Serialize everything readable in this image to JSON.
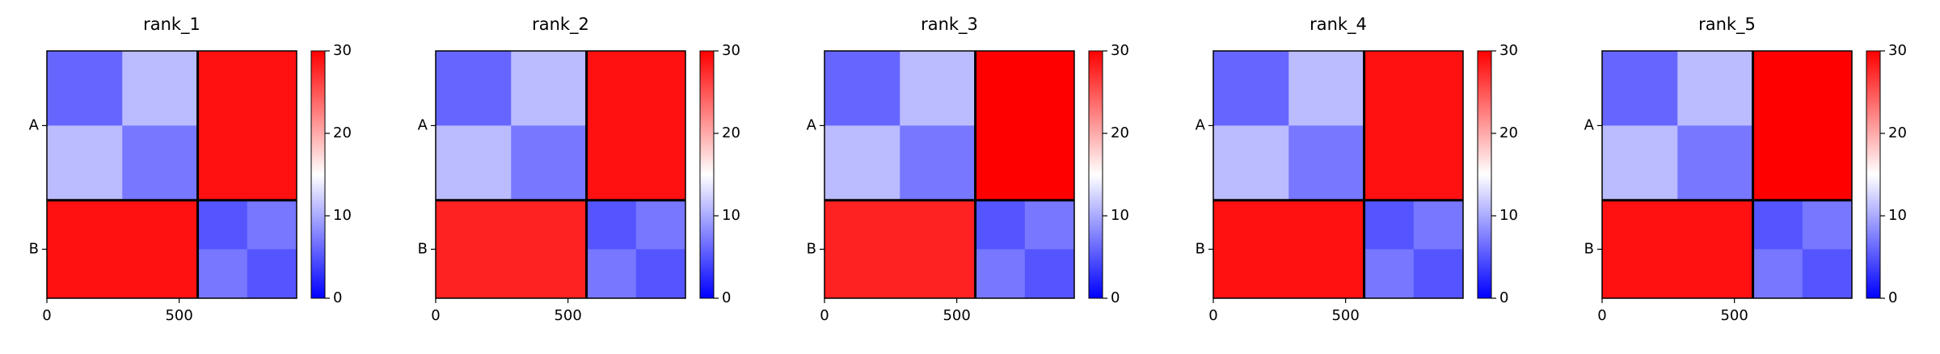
{
  "chart_data": [
    {
      "type": "heatmap",
      "title": "rank_1",
      "cmap": "bwr",
      "x_edges": [
        0,
        285,
        570,
        757,
        944
      ],
      "y_edges": [
        0,
        285,
        570,
        757,
        944
      ],
      "values": [
        [
          6,
          11,
          29,
          29
        ],
        [
          11,
          7,
          29,
          29
        ],
        [
          29,
          29,
          5,
          7
        ],
        [
          29,
          29,
          7,
          5
        ]
      ],
      "xlim": [
        0,
        944
      ],
      "ylim": [
        944,
        0
      ],
      "xticks": [
        0,
        500
      ],
      "yticks": [
        {
          "value": 285,
          "label": "A"
        },
        {
          "value": 757,
          "label": "B"
        }
      ],
      "chain_breaks": [
        570
      ],
      "clim": [
        0,
        30
      ],
      "cticks": [
        0,
        10,
        20,
        30
      ]
    },
    {
      "type": "heatmap",
      "title": "rank_2",
      "cmap": "bwr",
      "x_edges": [
        0,
        285,
        570,
        757,
        944
      ],
      "y_edges": [
        0,
        285,
        570,
        757,
        944
      ],
      "values": [
        [
          6,
          11,
          29,
          29
        ],
        [
          11,
          7,
          29,
          29
        ],
        [
          28,
          28,
          5,
          7
        ],
        [
          28,
          28,
          7,
          5
        ]
      ],
      "xlim": [
        0,
        944
      ],
      "ylim": [
        944,
        0
      ],
      "xticks": [
        0,
        500
      ],
      "yticks": [
        {
          "value": 285,
          "label": "A"
        },
        {
          "value": 757,
          "label": "B"
        }
      ],
      "chain_breaks": [
        570
      ],
      "clim": [
        0,
        30
      ],
      "cticks": [
        0,
        10,
        20,
        30
      ]
    },
    {
      "type": "heatmap",
      "title": "rank_3",
      "cmap": "bwr",
      "x_edges": [
        0,
        285,
        570,
        757,
        944
      ],
      "y_edges": [
        0,
        285,
        570,
        757,
        944
      ],
      "values": [
        [
          6,
          11,
          30,
          30
        ],
        [
          11,
          7,
          30,
          30
        ],
        [
          28,
          28,
          5,
          7
        ],
        [
          28,
          28,
          7,
          5
        ]
      ],
      "xlim": [
        0,
        944
      ],
      "ylim": [
        944,
        0
      ],
      "xticks": [
        0,
        500
      ],
      "yticks": [
        {
          "value": 285,
          "label": "A"
        },
        {
          "value": 757,
          "label": "B"
        }
      ],
      "chain_breaks": [
        570
      ],
      "clim": [
        0,
        30
      ],
      "cticks": [
        0,
        10,
        20,
        30
      ]
    },
    {
      "type": "heatmap",
      "title": "rank_4",
      "cmap": "bwr",
      "x_edges": [
        0,
        285,
        570,
        757,
        944
      ],
      "y_edges": [
        0,
        285,
        570,
        757,
        944
      ],
      "values": [
        [
          6,
          11,
          29,
          29
        ],
        [
          11,
          7,
          29,
          29
        ],
        [
          29,
          29,
          5,
          7
        ],
        [
          29,
          29,
          7,
          5
        ]
      ],
      "xlim": [
        0,
        944
      ],
      "ylim": [
        944,
        0
      ],
      "xticks": [
        0,
        500
      ],
      "yticks": [
        {
          "value": 285,
          "label": "A"
        },
        {
          "value": 757,
          "label": "B"
        }
      ],
      "chain_breaks": [
        570
      ],
      "clim": [
        0,
        30
      ],
      "cticks": [
        0,
        10,
        20,
        30
      ]
    },
    {
      "type": "heatmap",
      "title": "rank_5",
      "cmap": "bwr",
      "x_edges": [
        0,
        285,
        570,
        757,
        944
      ],
      "y_edges": [
        0,
        285,
        570,
        757,
        944
      ],
      "values": [
        [
          6,
          11,
          30,
          30
        ],
        [
          11,
          7,
          30,
          30
        ],
        [
          29,
          29,
          5,
          7
        ],
        [
          29,
          29,
          7,
          5
        ]
      ],
      "xlim": [
        0,
        944
      ],
      "ylim": [
        944,
        0
      ],
      "xticks": [
        0,
        500
      ],
      "yticks": [
        {
          "value": 285,
          "label": "A"
        },
        {
          "value": 757,
          "label": "B"
        }
      ],
      "chain_breaks": [
        570
      ],
      "clim": [
        0,
        30
      ],
      "cticks": [
        0,
        10,
        20,
        30
      ]
    }
  ]
}
